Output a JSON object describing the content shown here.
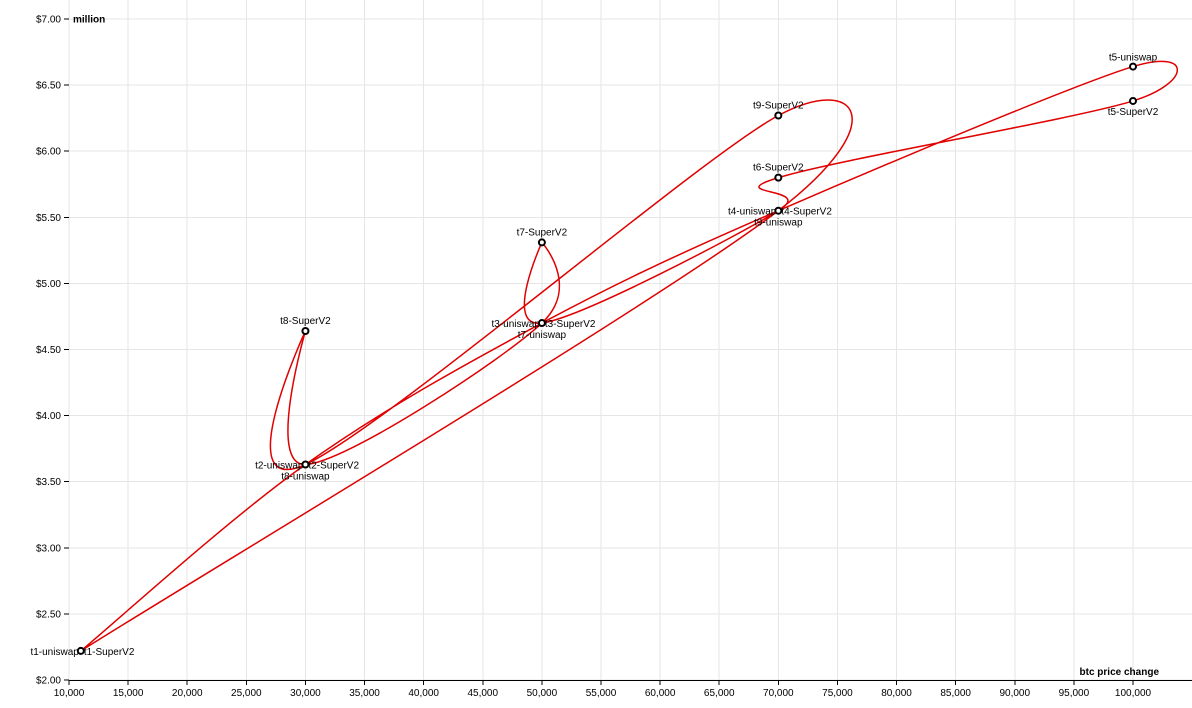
{
  "chart_data": {
    "type": "line",
    "xlabel": "btc price change",
    "ylabel": "million",
    "xlim": [
      10000,
      100000
    ],
    "ylim": [
      2.0,
      7.0
    ],
    "x_ticks": [
      10000,
      15000,
      20000,
      25000,
      30000,
      35000,
      40000,
      45000,
      50000,
      55000,
      60000,
      65000,
      70000,
      75000,
      80000,
      85000,
      90000,
      95000,
      100000
    ],
    "x_tick_labels": [
      "10,000",
      "15,000",
      "20,000",
      "25,000",
      "30,000",
      "35,000",
      "40,000",
      "45,000",
      "50,000",
      "55,000",
      "60,000",
      "65,000",
      "70,000",
      "75,000",
      "80,000",
      "85,000",
      "90,000",
      "95,000",
      "100,000"
    ],
    "y_ticks": [
      2.0,
      2.5,
      3.0,
      3.5,
      4.0,
      4.5,
      5.0,
      5.5,
      6.0,
      6.5,
      7.0
    ],
    "y_tick_labels": [
      "$2.00",
      "$2.50",
      "$3.00",
      "$3.50",
      "$4.00",
      "$4.50",
      "$5.00",
      "$5.50",
      "$6.00",
      "$6.50",
      "$7.00"
    ],
    "grid": true,
    "line_color": "#e00000",
    "points": [
      {
        "x": 11000,
        "y": 2.22
      },
      {
        "x": 30000,
        "y": 3.63
      },
      {
        "x": 50000,
        "y": 4.7
      },
      {
        "x": 70000,
        "y": 5.55
      },
      {
        "x": 100000,
        "y": 6.64
      },
      {
        "x": 100000,
        "y": 6.38
      },
      {
        "x": 70000,
        "y": 5.8
      },
      {
        "x": 50000,
        "y": 5.31
      },
      {
        "x": 30000,
        "y": 4.64
      },
      {
        "x": 70000,
        "y": 6.27
      }
    ],
    "point_order": [
      0,
      1,
      2,
      3,
      4,
      5,
      6,
      3,
      2,
      7,
      2,
      1,
      8,
      1,
      9,
      3,
      0
    ],
    "labels": [
      {
        "text": "t1-uniswap",
        "point": 0,
        "anchor": "end",
        "dx": -2,
        "dy": 4
      },
      {
        "text": "t1-SuperV2",
        "point": 0,
        "anchor": "start",
        "dx": 3,
        "dy": 4
      },
      {
        "text": "t2-uniswap",
        "point": 1,
        "anchor": "end",
        "dx": -2,
        "dy": 4
      },
      {
        "text": "t2-SuperV2",
        "point": 1,
        "anchor": "start",
        "dx": 3,
        "dy": 4
      },
      {
        "text": "t8-uniswap",
        "point": 1,
        "anchor": "middle",
        "dx": 0,
        "dy": 15
      },
      {
        "text": "t3-uniswap",
        "point": 2,
        "anchor": "end",
        "dx": -2,
        "dy": 4
      },
      {
        "text": "t3-SuperV2",
        "point": 2,
        "anchor": "start",
        "dx": 3,
        "dy": 4
      },
      {
        "text": "t7-uniswap",
        "point": 2,
        "anchor": "middle",
        "dx": 0,
        "dy": 15
      },
      {
        "text": "t4-uniswap",
        "point": 3,
        "anchor": "end",
        "dx": -2,
        "dy": 4
      },
      {
        "text": "t4-SuperV2",
        "point": 3,
        "anchor": "start",
        "dx": 3,
        "dy": 4
      },
      {
        "text": "t9-uniswap",
        "point": 3,
        "anchor": "middle",
        "dx": 0,
        "dy": 15
      },
      {
        "text": "t5-uniswap",
        "point": 4,
        "anchor": "middle",
        "dx": 0,
        "dy": -6
      },
      {
        "text": "t5-SuperV2",
        "point": 5,
        "anchor": "middle",
        "dx": 0,
        "dy": 14
      },
      {
        "text": "t6-SuperV2",
        "point": 6,
        "anchor": "middle",
        "dx": 0,
        "dy": -7
      },
      {
        "text": "t7-SuperV2",
        "point": 7,
        "anchor": "middle",
        "dx": 0,
        "dy": -7
      },
      {
        "text": "t8-SuperV2",
        "point": 8,
        "anchor": "middle",
        "dx": 0,
        "dy": -7
      },
      {
        "text": "t9-SuperV2",
        "point": 9,
        "anchor": "middle",
        "dx": 0,
        "dy": -7
      }
    ]
  }
}
